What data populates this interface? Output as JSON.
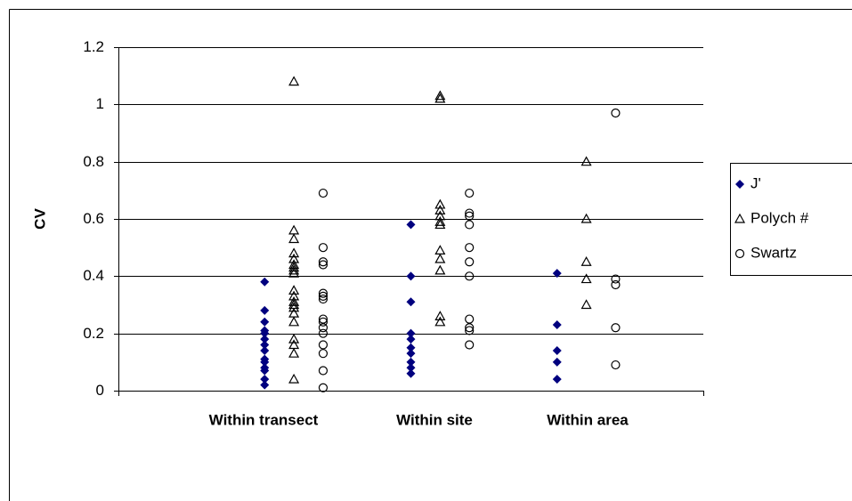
{
  "chart_data": {
    "type": "scatter",
    "y_label": "CV",
    "categories": [
      "Within transect",
      "Within site",
      "Within area"
    ],
    "xlim": [
      0,
      4
    ],
    "ylim": [
      0,
      1.2
    ],
    "yticks": [
      0,
      0.2,
      0.4,
      0.6,
      0.8,
      1,
      1.2
    ],
    "grid": true,
    "legend": "right",
    "series": [
      {
        "name": "J'",
        "color": "#00007f",
        "marker": "diamond",
        "x": [
          1,
          1,
          1,
          1,
          1,
          1,
          1,
          1,
          1,
          1,
          1,
          1,
          1,
          1,
          2,
          2,
          2,
          2,
          2,
          2,
          2,
          2,
          2,
          2,
          3,
          3,
          3,
          3,
          3
        ],
        "values": [
          0.38,
          0.28,
          0.24,
          0.21,
          0.2,
          0.18,
          0.16,
          0.14,
          0.11,
          0.1,
          0.08,
          0.07,
          0.04,
          0.02,
          0.58,
          0.4,
          0.31,
          0.2,
          0.18,
          0.15,
          0.13,
          0.1,
          0.08,
          0.06,
          0.41,
          0.23,
          0.14,
          0.1,
          0.04
        ]
      },
      {
        "name": "Polych #",
        "color": "#000000",
        "marker": "triangle",
        "x": [
          1.2,
          1.2,
          1.2,
          1.2,
          1.2,
          1.2,
          1.2,
          1.2,
          1.2,
          1.2,
          1.2,
          1.2,
          1.2,
          1.2,
          1.2,
          1.2,
          1.2,
          1.2,
          1.2,
          1.2,
          2.2,
          2.2,
          2.2,
          2.2,
          2.2,
          2.2,
          2.2,
          2.2,
          2.2,
          2.2,
          2.2,
          2.2,
          3.2,
          3.2,
          3.2,
          3.2,
          3.2
        ],
        "values": [
          1.08,
          0.56,
          0.53,
          0.48,
          0.46,
          0.44,
          0.43,
          0.42,
          0.41,
          0.35,
          0.33,
          0.31,
          0.3,
          0.29,
          0.27,
          0.24,
          0.18,
          0.16,
          0.13,
          0.04,
          1.03,
          1.02,
          0.65,
          0.63,
          0.61,
          0.59,
          0.58,
          0.49,
          0.46,
          0.42,
          0.26,
          0.24,
          0.8,
          0.6,
          0.45,
          0.39,
          0.3
        ]
      },
      {
        "name": "Swartz",
        "color": "#000000",
        "marker": "circle",
        "x": [
          1.4,
          1.4,
          1.4,
          1.4,
          1.4,
          1.4,
          1.4,
          1.4,
          1.4,
          1.4,
          1.4,
          1.4,
          1.4,
          1.4,
          1.4,
          2.4,
          2.4,
          2.4,
          2.4,
          2.4,
          2.4,
          2.4,
          2.4,
          2.4,
          2.4,
          2.4,
          3.4,
          3.4,
          3.4,
          3.4,
          3.4
        ],
        "values": [
          0.69,
          0.5,
          0.45,
          0.44,
          0.34,
          0.33,
          0.32,
          0.25,
          0.24,
          0.22,
          0.2,
          0.16,
          0.13,
          0.07,
          0.01,
          0.69,
          0.62,
          0.61,
          0.58,
          0.5,
          0.45,
          0.4,
          0.25,
          0.22,
          0.21,
          0.16,
          0.97,
          0.39,
          0.37,
          0.22,
          0.09
        ]
      }
    ]
  }
}
